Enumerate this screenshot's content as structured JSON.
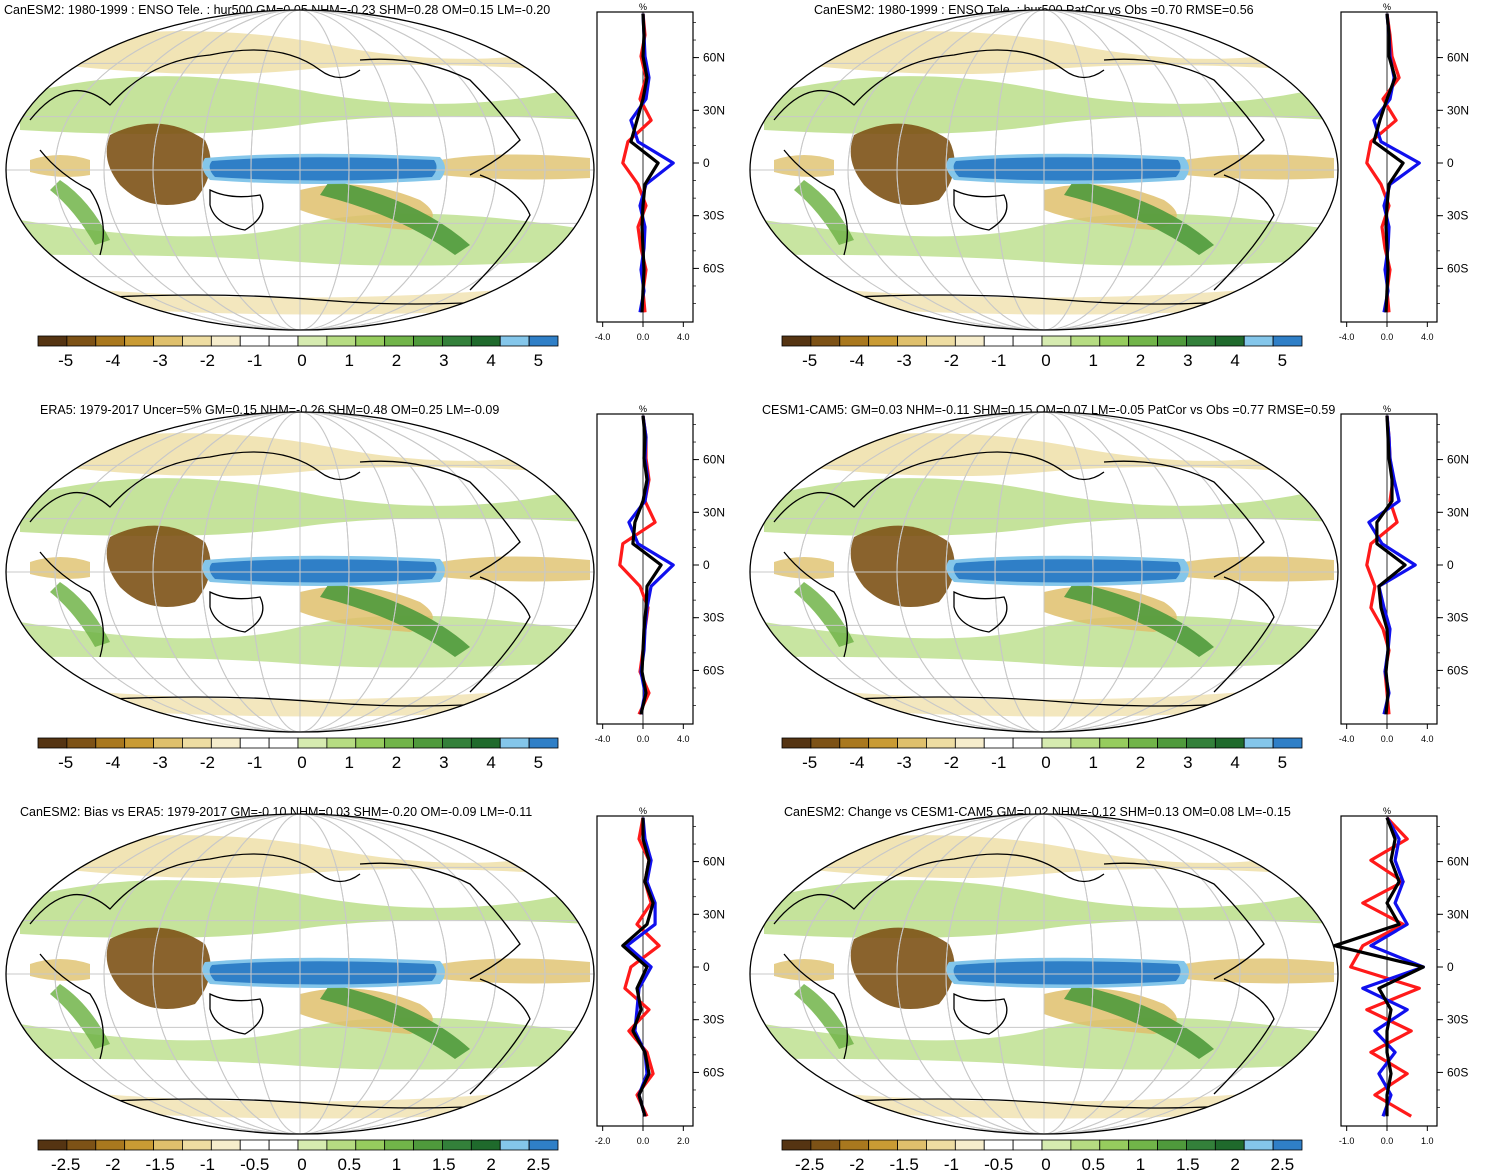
{
  "colors": {
    "palette": [
      "#553412",
      "#7d5216",
      "#a9781e",
      "#c99b34",
      "#dfc06c",
      "#eedda2",
      "#f6edcc",
      "#ffffff",
      "#ffffff",
      "#d6ebb0",
      "#b6dc82",
      "#96cc5e",
      "#71b449",
      "#4f9a3c",
      "#33803a",
      "#1f6a2c",
      "#84c6ea",
      "#2f7fc7"
    ],
    "ocean_blue": "#2f7fc7",
    "lightblue": "#84c6ea",
    "curve_red": "#ff1a1a",
    "curve_blue": "#1010ee",
    "curve_black": "#000000"
  },
  "panels": [
    {
      "title": "CanESM2: 1980-1999 : ENSO Tele. : hur500 GM=0.05 NHM=-0.23 SHM=0.28 OM=0.15 LM=-0.20",
      "colorbar_ticks": [
        "-5",
        "-4",
        "-3",
        "-2",
        "-1",
        "0",
        "1",
        "2",
        "3",
        "4",
        "5"
      ],
      "zonal_x_ticks": [
        "-4.0",
        "0.0",
        "4.0"
      ],
      "zonal_x_unit": "%",
      "lat_ticks": [
        "60N",
        "30N",
        "0",
        "30S",
        "60S"
      ],
      "zonal_scale": 4,
      "red_profile": [
        0,
        0.2,
        -0.2,
        0.3,
        -0.3,
        0.8,
        -1.5,
        -2.0,
        -0.5,
        0.3,
        -0.5,
        -0.2,
        0.3,
        0,
        0.2
      ],
      "blue_profile": [
        0,
        0.1,
        0.2,
        0.6,
        0.3,
        -1.2,
        -0.5,
        3.0,
        0.3,
        -0.3,
        0.2,
        0.1,
        -0.2,
        0.1,
        -0.3
      ],
      "black_profile": [
        0,
        0.1,
        0,
        0.4,
        0,
        -0.6,
        -1.2,
        1.5,
        0.2,
        0,
        -0.1,
        0,
        0.1,
        0,
        -0.1
      ]
    },
    {
      "title": "CanESM2: 1980-1999 : ENSO Tele. : hur500 PatCor vs Obs =0.70 RMSE=0.56",
      "colorbar_ticks": [
        "-5",
        "-4",
        "-3",
        "-2",
        "-1",
        "0",
        "1",
        "2",
        "3",
        "4",
        "5"
      ],
      "zonal_x_ticks": [
        "-4.0",
        "0.0",
        "4.0"
      ],
      "zonal_x_unit": "%",
      "lat_ticks": [
        "60N",
        "30N",
        "0",
        "30S",
        "60S"
      ],
      "zonal_scale": 4,
      "red_profile": [
        0,
        0.3,
        0.5,
        1.2,
        -0.4,
        0.9,
        -1.6,
        -2.0,
        -0.6,
        0.2,
        -0.5,
        -0.2,
        0.3,
        0,
        0.2
      ],
      "blue_profile": [
        0,
        0.2,
        0.3,
        0.7,
        0.3,
        -1.3,
        -0.6,
        3.2,
        0.3,
        -0.3,
        0.2,
        0.1,
        -0.2,
        0.1,
        -0.3
      ],
      "black_profile": [
        0,
        0.2,
        0.2,
        0.8,
        0,
        -0.7,
        -1.3,
        1.6,
        0.2,
        0,
        -0.1,
        0,
        0.1,
        0,
        -0.1
      ]
    },
    {
      "title": "ERA5: 1979-2017 Uncer=5% GM=0.15 NHM=-0.26 SHM=0.48 OM=0.25 LM=-0.09",
      "colorbar_ticks": [
        "-5",
        "-4",
        "-3",
        "-2",
        "-1",
        "0",
        "1",
        "2",
        "3",
        "4",
        "5"
      ],
      "zonal_x_ticks": [
        "-4.0",
        "0.0",
        "4.0"
      ],
      "zonal_x_unit": "%",
      "lat_ticks": [
        "60N",
        "30N",
        "0",
        "30S",
        "60S"
      ],
      "zonal_scale": 4,
      "red_profile": [
        0,
        0.3,
        0.3,
        0.6,
        0.2,
        1.2,
        -2.0,
        -2.3,
        -0.3,
        0.5,
        0.2,
        0,
        -0.3,
        0.6,
        -0.4
      ],
      "blue_profile": [
        0,
        0.3,
        0.2,
        0.5,
        0.2,
        -1.4,
        -0.5,
        3.0,
        0.8,
        0.4,
        0.2,
        0.1,
        -0.2,
        0.2,
        -0.2
      ],
      "black_profile": [
        0,
        0.2,
        0.1,
        0.4,
        0,
        -0.8,
        -1.0,
        1.8,
        0.4,
        0.3,
        0.1,
        0,
        -0.1,
        0.3,
        -0.2
      ]
    },
    {
      "title": "CESM1-CAM5: GM=0.03 NHM=-0.11 SHM=0.15 OM=0.07 LM=-0.05 PatCor vs Obs =0.77 RMSE=0.59",
      "colorbar_ticks": [
        "-5",
        "-4",
        "-3",
        "-2",
        "-1",
        "0",
        "1",
        "2",
        "3",
        "4",
        "5"
      ],
      "zonal_x_ticks": [
        "-4.0",
        "0.0",
        "4.0"
      ],
      "zonal_x_unit": "%",
      "lat_ticks": [
        "60N",
        "30N",
        "0",
        "30S",
        "60S"
      ],
      "zonal_scale": 4,
      "red_profile": [
        0,
        0.2,
        0.3,
        0.6,
        0.3,
        1.0,
        -1.6,
        -2.0,
        -1.2,
        -1.6,
        -0.4,
        0.2,
        -0.2,
        0,
        0.2
      ],
      "blue_profile": [
        0,
        0.2,
        0.3,
        0.7,
        1.2,
        -1.8,
        -0.5,
        2.8,
        -0.8,
        -0.3,
        0.3,
        0.1,
        -0.2,
        0.2,
        -0.3
      ],
      "black_profile": [
        0,
        0.1,
        0.2,
        0.5,
        0.5,
        -1.0,
        -1.0,
        1.8,
        -0.8,
        -0.6,
        0,
        0.1,
        -0.1,
        0.1,
        -0.1
      ]
    },
    {
      "title": "CanESM2: Bias vs ERA5: 1979-2017 GM=-0.10 NHM=0.03 SHM=-0.20 OM=-0.09 LM=-0.11",
      "colorbar_ticks": [
        "-2.5",
        "-2",
        "-1.5",
        "-1",
        "-0.5",
        "0",
        "0.5",
        "1",
        "1.5",
        "2",
        "2.5"
      ],
      "zonal_x_ticks": [
        "-2.0",
        "0.0",
        "2.0"
      ],
      "zonal_x_unit": "%",
      "lat_ticks": [
        "60N",
        "30N",
        "0",
        "30S",
        "60S"
      ],
      "zonal_scale": 2,
      "red_profile": [
        0,
        -0.2,
        0.3,
        0.1,
        0.4,
        -0.3,
        0.8,
        -0.6,
        -0.9,
        0.3,
        -0.7,
        0.2,
        0.5,
        -0.3,
        0.2
      ],
      "blue_profile": [
        0,
        0.1,
        0.4,
        0.2,
        0.6,
        0.6,
        -0.8,
        0.4,
        -0.2,
        -0.3,
        -0.4,
        0.1,
        0.2,
        -0.2,
        0.1
      ],
      "black_profile": [
        0,
        0,
        0.3,
        0.1,
        0.5,
        0.2,
        -1.0,
        0.2,
        -0.3,
        -0.1,
        -0.5,
        0.1,
        0.3,
        -0.2,
        0.1
      ]
    },
    {
      "title": "CanESM2: Change vs CESM1-CAM5 GM=0.02 NHM=-0.12 SHM=0.13 OM=0.08 LM=-0.15",
      "colorbar_ticks": [
        "-2.5",
        "-2",
        "-1.5",
        "-1",
        "-0.5",
        "0",
        "0.5",
        "1",
        "1.5",
        "2",
        "2.5"
      ],
      "zonal_x_ticks": [
        "-1.0",
        "0.0",
        "1.0"
      ],
      "zonal_x_unit": "%",
      "lat_ticks": [
        "60N",
        "30N",
        "0",
        "30S",
        "60S"
      ],
      "zonal_scale": 1,
      "red_profile": [
        0,
        0.5,
        -0.4,
        0.4,
        -0.6,
        0.4,
        -0.6,
        -0.9,
        0.8,
        -0.5,
        0.6,
        -0.4,
        0.5,
        -0.3,
        0.6
      ],
      "blue_profile": [
        0,
        0.3,
        0.2,
        0.4,
        0.2,
        0.5,
        -0.4,
        0.9,
        -0.6,
        0.5,
        -0.3,
        0.2,
        -0.2,
        0.1,
        -0.1
      ],
      "black_profile": [
        0,
        0.2,
        0.1,
        0.3,
        0,
        0.3,
        -1.3,
        0.9,
        -0.2,
        0.1,
        0,
        0,
        0.1,
        0,
        0
      ]
    }
  ]
}
